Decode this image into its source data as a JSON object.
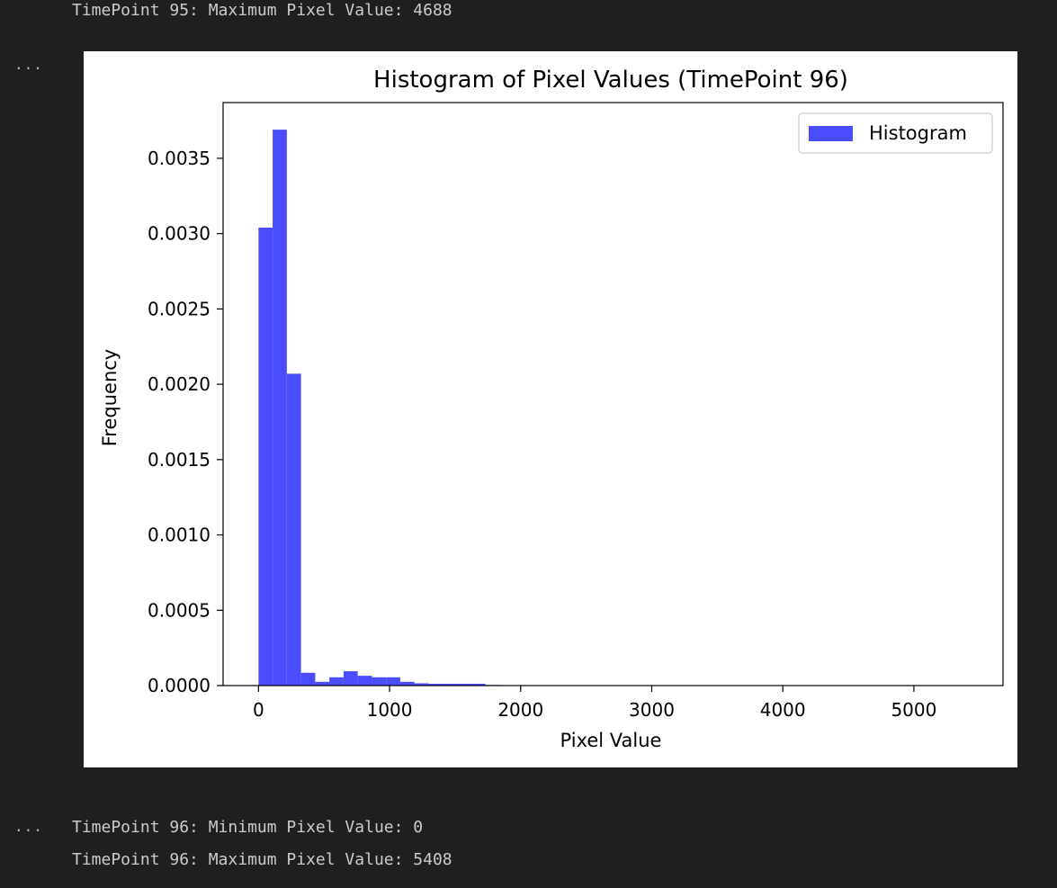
{
  "output_above": {
    "lines": [
      "TimePoint 95: Maximum Pixel Value: 4688"
    ]
  },
  "output_below": {
    "lines": [
      "TimePoint 96: Minimum Pixel Value: 0",
      "TimePoint 96: Maximum Pixel Value: 5408"
    ]
  },
  "cell_markers": {
    "figure_ellipsis": "...",
    "text_ellipsis": "..."
  },
  "chart_data": {
    "type": "bar",
    "title": "Histogram of Pixel Values (TimePoint 96)",
    "xlabel": "Pixel Value",
    "ylabel": "Frequency",
    "xlim": [
      -270,
      5680
    ],
    "ylim": [
      0,
      0.00387
    ],
    "xticks": [
      0,
      1000,
      2000,
      3000,
      4000,
      5000
    ],
    "xtick_labels": [
      "0",
      "1000",
      "2000",
      "3000",
      "4000",
      "5000"
    ],
    "yticks": [
      0.0,
      0.0005,
      0.001,
      0.0015,
      0.002,
      0.0025,
      0.003,
      0.0035
    ],
    "ytick_labels": [
      "0.0000",
      "0.0005",
      "0.0010",
      "0.0015",
      "0.0020",
      "0.0025",
      "0.0030",
      "0.0035"
    ],
    "legend": {
      "position": "top-right",
      "entries": [
        "Histogram"
      ]
    },
    "grid": false,
    "bar_color": "#4c4cff",
    "bin_width": 108.16,
    "series": [
      {
        "name": "Histogram",
        "bin_starts": [
          0,
          108.16,
          216.32,
          324.48,
          432.64,
          540.8,
          648.96,
          757.12,
          865.28,
          973.44,
          1081.6,
          1189.76,
          1297.92,
          1406.08,
          1514.24,
          1622.4,
          1730.56
        ],
        "values": [
          0.00304,
          0.00369,
          0.00207,
          8.5e-05,
          2.5e-05,
          5.5e-05,
          9.5e-05,
          6.5e-05,
          5.5e-05,
          5.5e-05,
          2.5e-05,
          1.5e-05,
          1.2e-05,
          1.2e-05,
          1.2e-05,
          1.2e-05,
          4e-06
        ]
      }
    ]
  }
}
